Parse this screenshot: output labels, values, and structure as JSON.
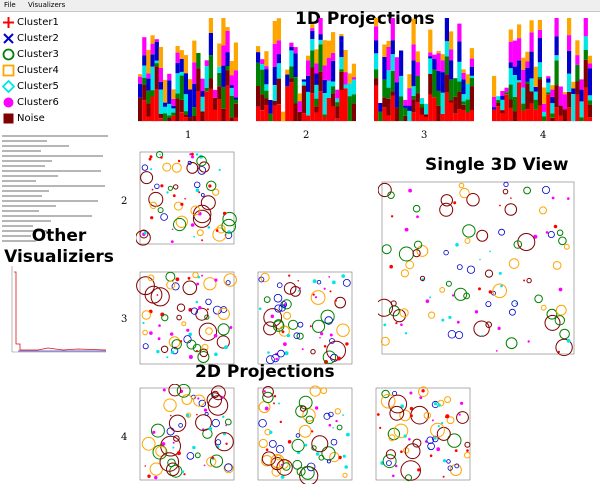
{
  "menu": {
    "file": "File",
    "visualizers": "Visualizers"
  },
  "legend": [
    {
      "label": "Cluster1",
      "color": "#ff0000",
      "symbol": "plus"
    },
    {
      "label": "Cluster2",
      "color": "#0000cc",
      "symbol": "cross"
    },
    {
      "label": "Cluster3",
      "color": "#008000",
      "symbol": "circle"
    },
    {
      "label": "Cluster4",
      "color": "#ffa500",
      "symbol": "square"
    },
    {
      "label": "Cluster5",
      "color": "#00e5e5",
      "symbol": "diamond"
    },
    {
      "label": "Cluster6",
      "color": "#ff00ff",
      "symbol": "dot"
    },
    {
      "label": "Noise",
      "color": "#800000",
      "symbol": "filledsquare"
    }
  ],
  "headings": {
    "projections_1d": "1D Projections",
    "single_3d": "Single 3D View",
    "other": [
      "Other",
      "Visualiziers"
    ],
    "projections_2d": "2D Projections"
  },
  "column_labels": [
    "1",
    "2",
    "3",
    "4"
  ],
  "row_labels": [
    "2",
    "3",
    "4"
  ]
}
